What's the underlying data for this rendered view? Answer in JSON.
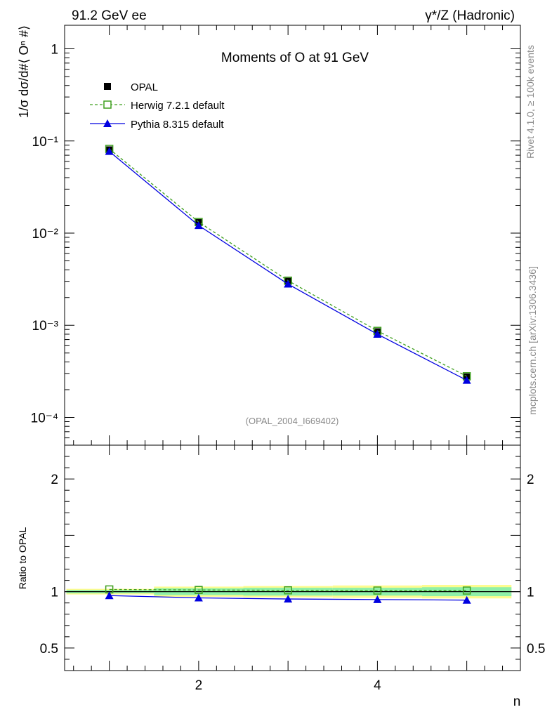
{
  "header": {
    "left": "91.2 GeV ee",
    "right": "γ*/Z (Hadronic)"
  },
  "side_text": {
    "top": "Rivet 4.1.0, ≥ 100k events",
    "bottom": "mcplots.cern.ch [arXiv:1306.3436]"
  },
  "chart_data": [
    {
      "type": "line",
      "title": "Moments of O at 91 GeV",
      "ylabel": "1/σ  dσ/d#⟨ Oⁿ #⟩",
      "yscale": "log",
      "ylim": [
        5e-05,
        1.8
      ],
      "xlim": [
        0.5,
        5.6
      ],
      "y_ticks": [
        {
          "v": 1,
          "label": "1"
        },
        {
          "v": 0.1,
          "label": "10⁻¹"
        },
        {
          "v": 0.01,
          "label": "10⁻²"
        },
        {
          "v": 0.001,
          "label": "10⁻³"
        },
        {
          "v": 0.0001,
          "label": "10⁻⁴"
        }
      ],
      "annotation": "(OPAL_2004_I669402)",
      "legend_position": "top-left",
      "x": [
        1,
        2,
        3,
        4,
        5
      ],
      "series": [
        {
          "name": "OPAL",
          "values": [
            0.08,
            0.013,
            0.003,
            0.00085,
            0.000275
          ],
          "color": "#000000",
          "marker": "filled-square"
        },
        {
          "name": "Herwig 7.2.1 default",
          "values": [
            0.082,
            0.0132,
            0.00305,
            0.00087,
            0.00028
          ],
          "color": "#3f9f1f",
          "marker": "open-square",
          "dash": true
        },
        {
          "name": "Pythia 8.315 default",
          "values": [
            0.077,
            0.0121,
            0.0028,
            0.0008,
            0.000253
          ],
          "color": "#0000e0",
          "marker": "filled-triangle"
        }
      ]
    },
    {
      "type": "line",
      "ylabel": "Ratio to OPAL",
      "xlabel": "n",
      "ylim": [
        0.3,
        2.3
      ],
      "xlim": [
        0.5,
        5.6
      ],
      "x_ticks": [
        {
          "v": 2,
          "label": "2"
        },
        {
          "v": 4,
          "label": "4"
        }
      ],
      "y_ticks": [
        {
          "v": 0.5,
          "label": "0.5"
        },
        {
          "v": 1,
          "label": "1"
        },
        {
          "v": 2,
          "label": "2"
        }
      ],
      "x": [
        1,
        2,
        3,
        4,
        5
      ],
      "band_inner": [
        0.015,
        0.03,
        0.035,
        0.035,
        0.04
      ],
      "band_outer": [
        0.025,
        0.045,
        0.05,
        0.055,
        0.06
      ],
      "series": [
        {
          "name": "Herwig 7.2.1 default",
          "values": [
            1.02,
            1.015,
            1.012,
            1.01,
            1.01
          ],
          "color": "#3f9f1f"
        },
        {
          "name": "Pythia 8.315 default",
          "values": [
            0.965,
            0.945,
            0.935,
            0.93,
            0.925
          ],
          "color": "#0000e0"
        }
      ]
    }
  ]
}
